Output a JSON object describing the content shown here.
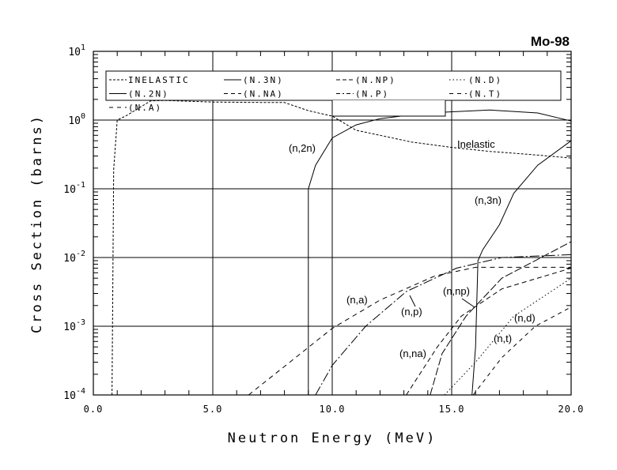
{
  "chart_data": {
    "type": "line",
    "title": "Mo-98",
    "xlabel": "Neutron Energy (MeV)",
    "ylabel": "Cross Section (barns)",
    "xlim": [
      0,
      20
    ],
    "ylim": [
      0.0001,
      10
    ],
    "yscale": "log",
    "grid": true,
    "legend_position": "top",
    "x_ticks": [
      "0.0",
      "5.0",
      "10.0",
      "15.0",
      "20.0"
    ],
    "y_ticks": [
      {
        "base": "10",
        "exp": "1"
      },
      {
        "base": "10",
        "exp": "0"
      },
      {
        "base": "10",
        "exp": "-1"
      },
      {
        "base": "10",
        "exp": "-2"
      },
      {
        "base": "10",
        "exp": "-3"
      },
      {
        "base": "10",
        "exp": "-4"
      }
    ],
    "series": [
      {
        "name": "INELASTIC",
        "label": "Inelastic",
        "dash": "3,2",
        "x": [
          0.78,
          0.85,
          1.0,
          1.4,
          2.4,
          3.0,
          5.0,
          7.4,
          8.0,
          9.0,
          10.0,
          11.0,
          12.0,
          13.3,
          15.0,
          16.6,
          18.6,
          20.0
        ],
        "y": [
          0.0001,
          0.19,
          1.0,
          1.17,
          1.9,
          1.93,
          1.83,
          1.8,
          1.8,
          1.37,
          1.14,
          0.71,
          0.6,
          0.48,
          0.4,
          0.35,
          0.31,
          0.28
        ]
      },
      {
        "name": "(N.3N)",
        "label": "(n,3n)",
        "dash": "",
        "x": [
          15.85,
          16.0,
          16.1,
          16.3,
          17.0,
          17.6,
          18.6,
          20.0
        ],
        "y": [
          0.0001,
          0.0005,
          0.009,
          0.013,
          0.03,
          0.086,
          0.22,
          0.5
        ]
      },
      {
        "name": "(N.NP)",
        "label": "(n,np)",
        "dash": "10,3",
        "x": [
          14.1,
          14.6,
          15.6,
          17.1,
          20.0
        ],
        "y": [
          0.0001,
          0.0004,
          0.0014,
          0.005,
          0.017
        ]
      },
      {
        "name": "(N.D)",
        "label": "(n,d)",
        "dash": "1.5,3",
        "x": [
          14.7,
          16.0,
          17.6,
          20.0
        ],
        "y": [
          0.0001,
          0.0003,
          0.0014,
          0.005
        ]
      },
      {
        "name": "(N.2N)",
        "label": "(n,2n)",
        "dash": "",
        "x": [
          9.0,
          9.0,
          9.3,
          10.0,
          11.0,
          12.0,
          14.0,
          16.6,
          18.6,
          20.0
        ],
        "y": [
          0.0001,
          0.1,
          0.22,
          0.55,
          0.85,
          1.05,
          1.27,
          1.4,
          1.27,
          0.97
        ]
      },
      {
        "name": "(N.NA)",
        "label": "(n,na)",
        "dash": "6,4",
        "x": [
          13.1,
          14.4,
          15.4,
          17.1,
          20.0
        ],
        "y": [
          0.0001,
          0.0005,
          0.0014,
          0.0035,
          0.007
        ]
      },
      {
        "name": "(N.P)",
        "label": "(n,p)",
        "dash": "12,3,2,3",
        "x": [
          9.3,
          10.0,
          11.4,
          13.1,
          15.2,
          17.1,
          20.0
        ],
        "y": [
          0.0001,
          0.00027,
          0.001,
          0.0032,
          0.007,
          0.01,
          0.011
        ]
      },
      {
        "name": "(N.T)",
        "label": "(n,t)",
        "dash": "5,5",
        "x": [
          15.9,
          17.1,
          18.5,
          20.0
        ],
        "y": [
          0.0001,
          0.00035,
          0.001,
          0.0019
        ]
      },
      {
        "name": "(N.A)",
        "label": "(n,a)",
        "dash": "6,5",
        "x": [
          6.5,
          10.0,
          12.0,
          14.3,
          16.0,
          20.0
        ],
        "y": [
          0.0001,
          0.00093,
          0.0024,
          0.0054,
          0.0072,
          0.0072
        ]
      }
    ]
  }
}
